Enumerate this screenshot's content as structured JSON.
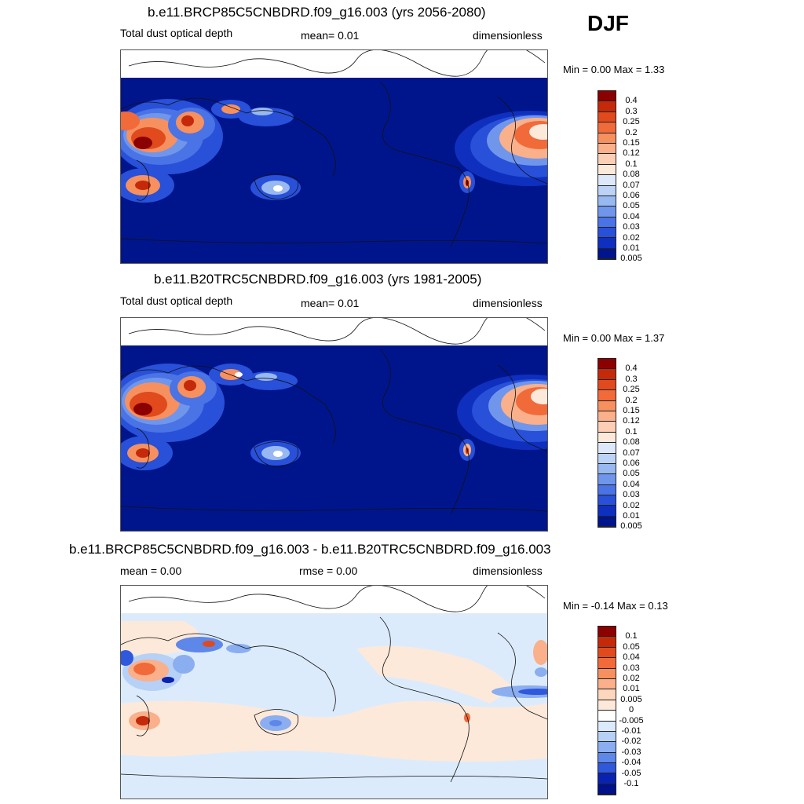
{
  "season": "DJF",
  "panels": [
    {
      "title": "b.e11.BRCP85C5CNBDRD.f09_g16.003 (yrs 2056-2080)",
      "left_label": "Total dust optical depth",
      "center_label": "mean=   0.01",
      "right_label": "dimensionless",
      "minmax": "Min =   0.00 Max =   1.33",
      "levels": [
        "0.4",
        "0.3",
        "0.25",
        "0.2",
        "0.15",
        "0.12",
        "0.1",
        "0.08",
        "0.07",
        "0.06",
        "0.05",
        "0.04",
        "0.03",
        "0.02",
        "0.01",
        "0.005"
      ],
      "colors": [
        "#8b0000",
        "#c42a0a",
        "#e04a1c",
        "#f06a3a",
        "#f7905f",
        "#fab08a",
        "#fcceb5",
        "#fde9da",
        "#dde9fb",
        "#bcd3f7",
        "#98b8f2",
        "#7096ec",
        "#4a73e6",
        "#2850d9",
        "#0f2fbe",
        "#00158c"
      ]
    },
    {
      "title": "b.e11.B20TRC5CNBDRD.f09_g16.003 (yrs 1981-2005)",
      "left_label": "Total dust optical depth",
      "center_label": "mean=   0.01",
      "right_label": "dimensionless",
      "minmax": "Min =   0.00 Max =   1.37",
      "levels": [
        "0.4",
        "0.3",
        "0.25",
        "0.2",
        "0.15",
        "0.12",
        "0.1",
        "0.08",
        "0.07",
        "0.06",
        "0.05",
        "0.04",
        "0.03",
        "0.02",
        "0.01",
        "0.005"
      ],
      "colors": [
        "#8b0000",
        "#c42a0a",
        "#e04a1c",
        "#f06a3a",
        "#f7905f",
        "#fab08a",
        "#fcceb5",
        "#fde9da",
        "#dde9fb",
        "#bcd3f7",
        "#98b8f2",
        "#7096ec",
        "#4a73e6",
        "#2850d9",
        "#0f2fbe",
        "#00158c"
      ]
    },
    {
      "title": "b.e11.BRCP85C5CNBDRD.f09_g16.003 - b.e11.B20TRC5CNBDRD.f09_g16.003",
      "left_label": "mean =   0.00",
      "center_label": "rmse =   0.00",
      "right_label": "dimensionless",
      "minmax": "Min =  -0.14 Max =   0.13",
      "levels": [
        "0.1",
        "0.05",
        "0.04",
        "0.03",
        "0.02",
        "0.01",
        "0.005",
        "0",
        "-0.005",
        "-0.01",
        "-0.02",
        "-0.03",
        "-0.04",
        "-0.05",
        "-0.1"
      ],
      "colors": [
        "#8b0000",
        "#c42a0a",
        "#e04a1c",
        "#f06a3a",
        "#f7905f",
        "#fab08a",
        "#fcd6bd",
        "#fde9da",
        "#ffffff",
        "#dcebfc",
        "#b7d0f5",
        "#8aaef0",
        "#5e87ea",
        "#2f58dc",
        "#0a22b0",
        "#00118a"
      ]
    }
  ]
}
